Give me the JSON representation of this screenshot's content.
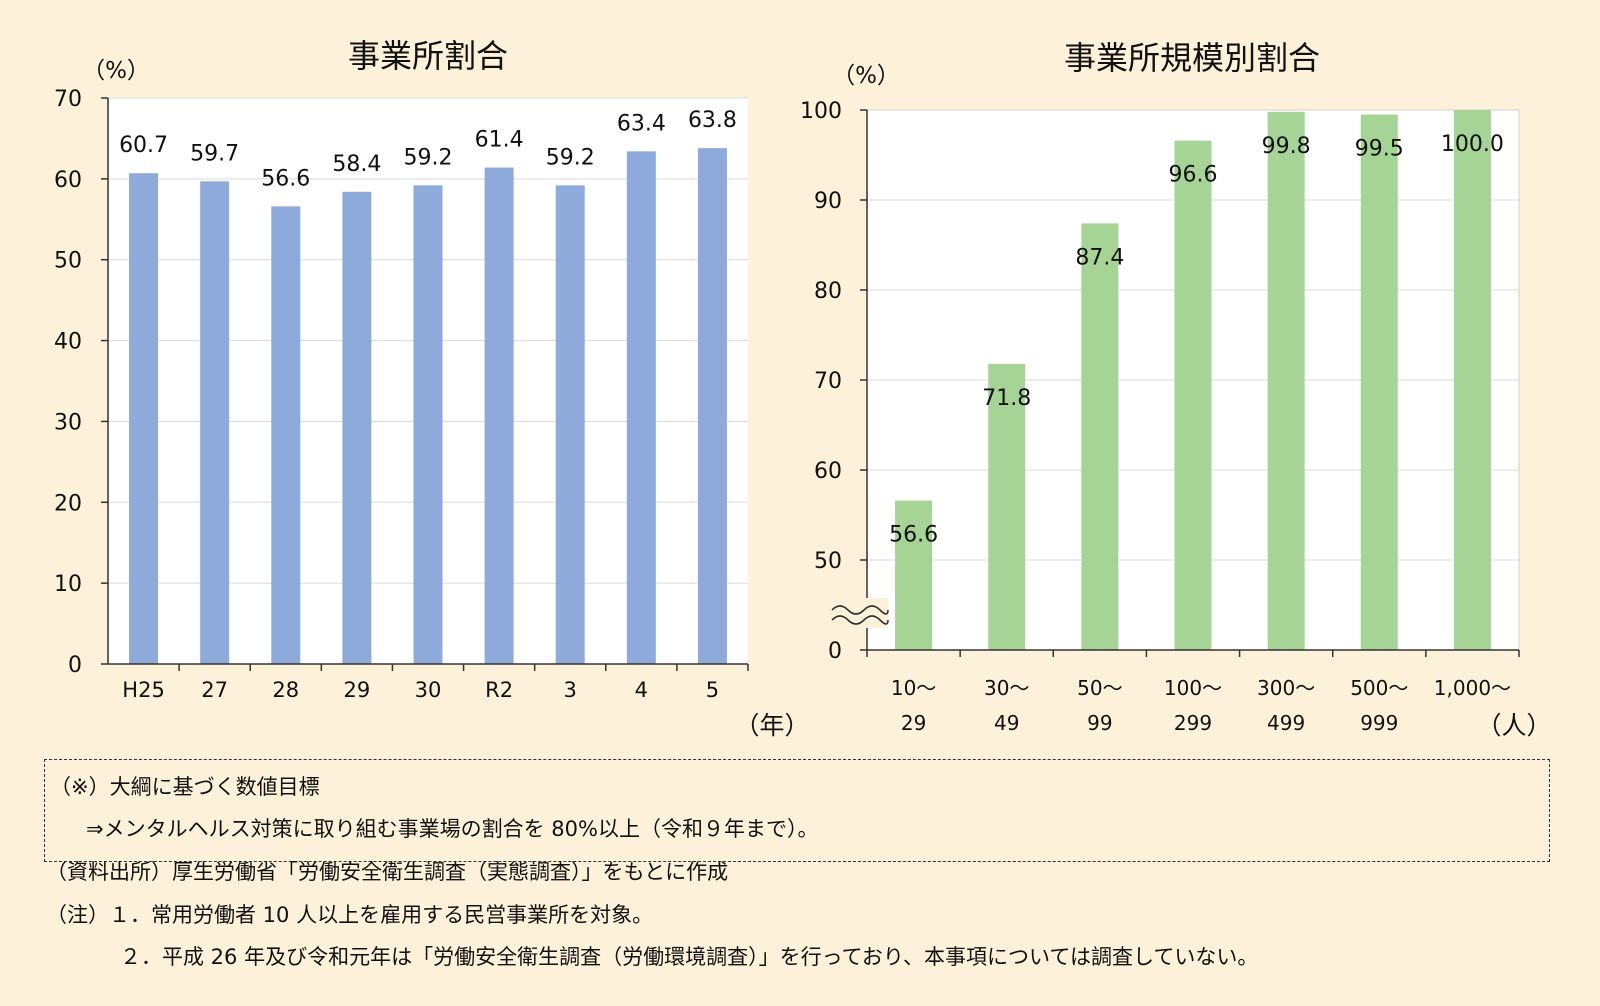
{
  "colors": {
    "background": "#fef1da",
    "bar_left": "#8eaadb",
    "bar_right": "#a6d396",
    "plot_area": "#ffffff",
    "gridline": "#d9d9d9"
  },
  "chart_data": [
    {
      "type": "bar",
      "title": "事業所割合",
      "ylabel": "（%）",
      "xlabel": "（年）",
      "categories": [
        "H25",
        "27",
        "28",
        "29",
        "30",
        "R2",
        "3",
        "4",
        "5"
      ],
      "values": [
        60.7,
        59.7,
        56.6,
        58.4,
        59.2,
        61.4,
        59.2,
        63.4,
        63.8
      ],
      "value_labels": [
        "60.7",
        "59.7",
        "56.6",
        "58.4",
        "59.2",
        "61.4",
        "59.2",
        "63.4",
        "63.8"
      ],
      "ylim": [
        0,
        70
      ],
      "yticks": [
        "0",
        "10",
        "20",
        "30",
        "40",
        "50",
        "60",
        "70"
      ],
      "grid": true
    },
    {
      "type": "bar",
      "title": "事業所規模別割合",
      "ylabel": "（%）",
      "xlabel": "（人）",
      "categories": [
        [
          "10～",
          "29"
        ],
        [
          "30～",
          "49"
        ],
        [
          "50～",
          "99"
        ],
        [
          "100～",
          "299"
        ],
        [
          "300～",
          "499"
        ],
        [
          "500～",
          "999"
        ],
        [
          "1,000～",
          ""
        ]
      ],
      "values": [
        56.6,
        71.8,
        87.4,
        96.6,
        99.8,
        99.5,
        100.0
      ],
      "value_labels": [
        "56.6",
        "71.8",
        "87.4",
        "96.6",
        "99.8",
        "99.5",
        "100.0"
      ],
      "ylim": [
        40,
        100
      ],
      "axis_break": true,
      "yticks": [
        "0",
        "50",
        "60",
        "70",
        "80",
        "90",
        "100"
      ],
      "grid": true
    }
  ],
  "notes": {
    "target_title": "（※）大綱に基づく数値目標",
    "target_text": "⇒メンタルヘルス対策に取り組む事業場の割合を 80%以上（令和９年まで）。",
    "source": "（資料出所）厚生労働省「労働安全衛生調査（実態調査）」をもとに作成",
    "note1": "（注）１．常用労働者 10 人以上を雇用する民営事業所を対象。",
    "note2": "２．平成 26 年及び令和元年は「労働安全衛生調査（労働環境調査）」を行っており、本事項については調査していない。"
  }
}
